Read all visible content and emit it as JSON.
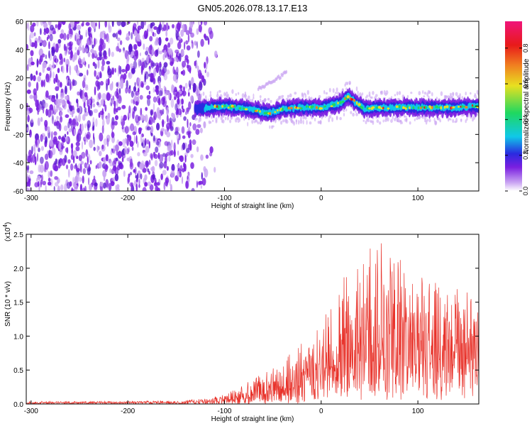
{
  "figure_title": "GN05.2026.078.13.17.E13",
  "chart_data": [
    {
      "type": "heatmap",
      "title": "GN05.2026.078.13.17.E13",
      "xlabel": "Height of straight line (km)",
      "ylabel": "Frequency (Hz)",
      "xlim": [
        -305,
        163
      ],
      "ylim": [
        -60,
        60
      ],
      "xticks": [
        -300,
        -200,
        -100,
        0,
        100
      ],
      "xtick_labels": [
        "-300",
        "-200",
        "-100",
        "0",
        "100"
      ],
      "yticks": [
        -60,
        -40,
        -20,
        0,
        20,
        40,
        60
      ],
      "ytick_labels": [
        "-60",
        "-40",
        "-20",
        "0",
        "20",
        "40",
        "60"
      ],
      "colorbar": {
        "label": "Normalized spectral amplitude",
        "range": [
          0,
          0.95
        ],
        "ticks": [
          0.0,
          0.2,
          0.4,
          0.6,
          0.8
        ],
        "tick_labels": [
          "0.0",
          "0.2",
          "0.4",
          "0.6",
          "0.8"
        ],
        "colormap": [
          "#ffffff",
          "#c9a4f2",
          "#7a1fe0",
          "#2a2ae0",
          "#10c8e8",
          "#1fd860",
          "#e8e020",
          "#f08020",
          "#e81a1a",
          "#f0147a"
        ]
      },
      "noise_region_x": [
        -305,
        -118
      ],
      "band_centerline": [
        {
          "x": -130,
          "y": -2
        },
        {
          "x": -100,
          "y": 0
        },
        {
          "x": -75,
          "y": -2
        },
        {
          "x": -55,
          "y": -5
        },
        {
          "x": -40,
          "y": -2
        },
        {
          "x": -20,
          "y": -1
        },
        {
          "x": 0,
          "y": -1
        },
        {
          "x": 20,
          "y": 2
        },
        {
          "x": 28,
          "y": 7
        },
        {
          "x": 35,
          "y": 3
        },
        {
          "x": 45,
          "y": -2
        },
        {
          "x": 60,
          "y": -1
        },
        {
          "x": 80,
          "y": -1
        },
        {
          "x": 100,
          "y": -1
        },
        {
          "x": 120,
          "y": -1
        },
        {
          "x": 140,
          "y": -1
        },
        {
          "x": 163,
          "y": 0
        }
      ],
      "faint_streak": [
        {
          "x": -65,
          "y": 12
        },
        {
          "x": -52,
          "y": 17
        },
        {
          "x": -42,
          "y": 21
        },
        {
          "x": -36,
          "y": 25
        }
      ]
    },
    {
      "type": "line",
      "xlabel": "Height of straight line (km)",
      "ylabel": "SNR (10 * v/v)",
      "y_multiplier_label": "(x10",
      "y_multiplier_exponent": "4",
      "y_multiplier_close": ")",
      "xlim": [
        -305,
        163
      ],
      "ylim": [
        0,
        2.5
      ],
      "xticks": [
        -300,
        -200,
        -100,
        0,
        100
      ],
      "xtick_labels": [
        "-300",
        "-200",
        "-100",
        "0",
        "100"
      ],
      "yticks": [
        0,
        0.5,
        1,
        1.5,
        2,
        2.5
      ],
      "ytick_labels": [
        "0.0",
        "0.5",
        "1.0",
        "1.5",
        "2.0",
        "2.5"
      ],
      "line_color": "#e8322a",
      "envelope": [
        {
          "x": -305,
          "low": 0.0,
          "mean": 0.02,
          "high": 0.04
        },
        {
          "x": -200,
          "low": 0.0,
          "mean": 0.02,
          "high": 0.04
        },
        {
          "x": -150,
          "low": 0.0,
          "mean": 0.02,
          "high": 0.05
        },
        {
          "x": -120,
          "low": 0.0,
          "mean": 0.03,
          "high": 0.08
        },
        {
          "x": -100,
          "low": 0.0,
          "mean": 0.06,
          "high": 0.15
        },
        {
          "x": -80,
          "low": 0.0,
          "mean": 0.1,
          "high": 0.3
        },
        {
          "x": -60,
          "low": 0.0,
          "mean": 0.15,
          "high": 0.45
        },
        {
          "x": -40,
          "low": 0.0,
          "mean": 0.2,
          "high": 0.7
        },
        {
          "x": -20,
          "low": 0.0,
          "mean": 0.3,
          "high": 0.9
        },
        {
          "x": 0,
          "low": 0.05,
          "mean": 0.5,
          "high": 1.2
        },
        {
          "x": 20,
          "low": 0.05,
          "mean": 0.7,
          "high": 1.8
        },
        {
          "x": 40,
          "low": 0.05,
          "mean": 0.85,
          "high": 2.2
        },
        {
          "x": 60,
          "low": 0.05,
          "mean": 0.9,
          "high": 2.5
        },
        {
          "x": 80,
          "low": 0.05,
          "mean": 0.9,
          "high": 2.2
        },
        {
          "x": 100,
          "low": 0.05,
          "mean": 0.85,
          "high": 1.9
        },
        {
          "x": 120,
          "low": 0.05,
          "mean": 0.8,
          "high": 1.8
        },
        {
          "x": 140,
          "low": 0.05,
          "mean": 0.8,
          "high": 1.7
        },
        {
          "x": 163,
          "low": 0.05,
          "mean": 0.75,
          "high": 1.6
        }
      ]
    }
  ]
}
